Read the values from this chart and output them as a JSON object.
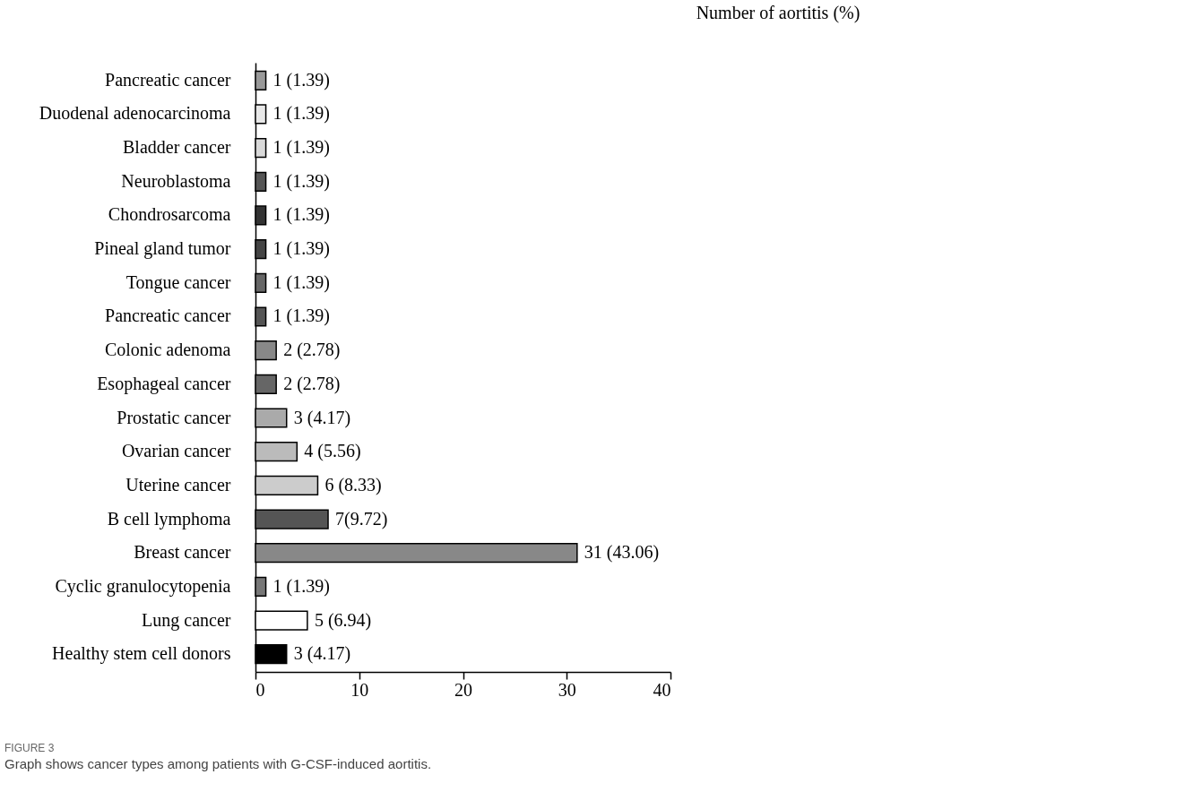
{
  "chart_data": {
    "type": "bar",
    "orientation": "horizontal",
    "categories": [
      "Pancreatic cancer",
      "Duodenal adenocarcinoma",
      "Bladder cancer",
      "Neuroblastoma",
      "Chondrosarcoma",
      "Pineal gland tumor",
      "Tongue cancer",
      "Pancreatic cancer",
      "Colonic adenoma",
      "Esophageal cancer",
      "Prostatic cancer",
      "Ovarian cancer",
      "Uterine cancer",
      "B cell lymphoma",
      "Breast cancer",
      "Cyclic granulocytopenia",
      "Lung cancer",
      "Healthy stem cell donors"
    ],
    "values": [
      1,
      1,
      1,
      1,
      1,
      1,
      1,
      1,
      2,
      2,
      3,
      4,
      6,
      7,
      31,
      1,
      5,
      3
    ],
    "colors": [
      "#999999",
      "#e8e8e8",
      "#d9d9d9",
      "#555555",
      "#333333",
      "#444444",
      "#666666",
      "#555555",
      "#888888",
      "#666666",
      "#aaaaaa",
      "#bbbbbb",
      "#cccccc",
      "#555555",
      "#888888",
      "#777777",
      "#ffffff",
      "#000000"
    ],
    "value_labels": [
      "1 (1.39)",
      "1 (1.39)",
      "1 (1.39)",
      "1 (1.39)",
      "1 (1.39)",
      "1 (1.39)",
      "1 (1.39)",
      "1 (1.39)",
      "2 (2.78)",
      "2 (2.78)",
      "3 (4.17)",
      "4 (5.56)",
      "6 (8.33)",
      "7(9.72)",
      "31 (43.06)",
      "1 (1.39)",
      "5 (6.94)",
      "3 (4.17)"
    ],
    "xlim": [
      0,
      40
    ],
    "xticks": [
      0,
      10,
      20,
      30,
      40
    ],
    "grid": false,
    "annotations": [
      "Number of aortitis (%)",
      "FIGURE 3",
      "Graph shows cancer types among patients with G-CSF-induced aortitis."
    ]
  }
}
